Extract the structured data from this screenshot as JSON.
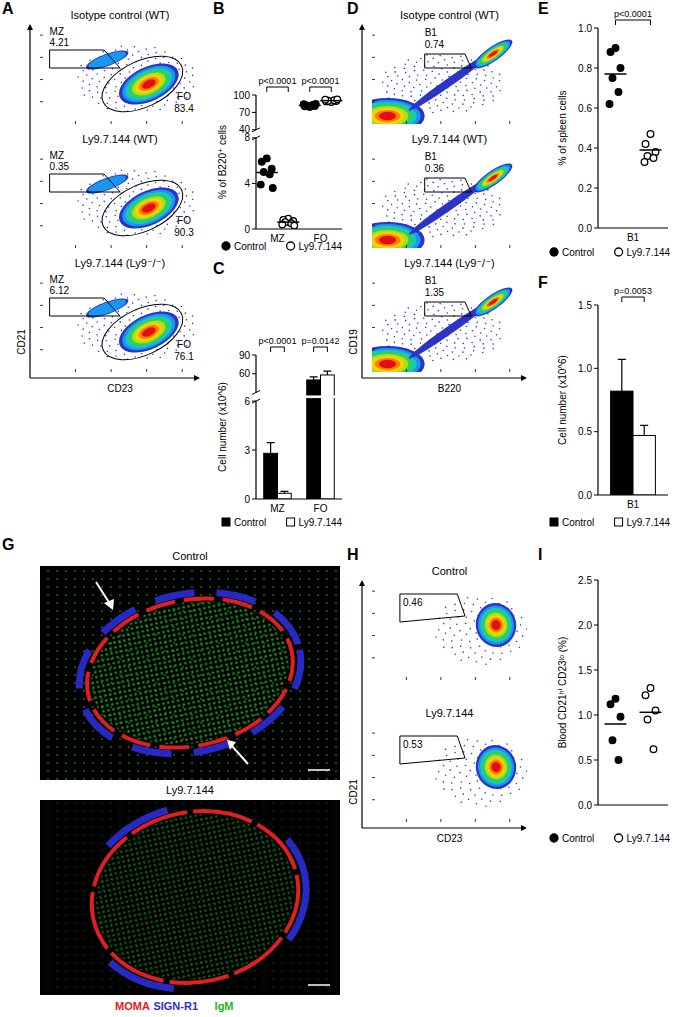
{
  "chart_data": [
    {
      "panel": "A",
      "type": "flow",
      "xlabel": "CD23",
      "ylabel": "CD21",
      "plots": [
        {
          "title": "Isotype control (WT)",
          "gates": [
            {
              "name": "MZ",
              "value": 4.21
            },
            {
              "name": "FO",
              "value": 83.4
            }
          ]
        },
        {
          "title": "Ly9.7.144 (WT)",
          "gates": [
            {
              "name": "MZ",
              "value": 0.35
            },
            {
              "name": "FO",
              "value": 90.3
            }
          ]
        },
        {
          "title": "Ly9.7.144 (Ly9⁻/⁻)",
          "gates": [
            {
              "name": "MZ",
              "value": 6.12
            },
            {
              "name": "FO",
              "value": 76.1
            }
          ]
        }
      ]
    },
    {
      "panel": "B",
      "type": "dot",
      "ylabel": "% of B220⁺ cells",
      "categories": [
        "MZ",
        "FO"
      ],
      "ylim": [
        0,
        100
      ],
      "ybreak": [
        8,
        40
      ],
      "yticks": [
        0,
        4,
        8,
        40,
        70,
        100
      ],
      "legend": "bottom",
      "series": [
        {
          "name": "Control",
          "marker": "filled",
          "color": "#000000",
          "values": [
            [
              6.2,
              5.9,
              5.3,
              5.0,
              4.8,
              3.9,
              3.6
            ],
            [
              79.5,
              80.5,
              81,
              82,
              83,
              84,
              84.5
            ]
          ],
          "means": [
            4.96,
            82.07
          ]
        },
        {
          "name": "Ly9.7.144",
          "marker": "open",
          "color": "#000000",
          "values": [
            [
              0.9,
              0.8,
              0.7,
              0.6,
              0.5,
              0.4,
              0.3
            ],
            [
              88,
              89,
              89.5,
              90,
              91,
              92,
              92.5
            ]
          ],
          "means": [
            0.6,
            90.29
          ]
        }
      ],
      "annotations": [
        {
          "text": "p<0.0001",
          "category": 0
        },
        {
          "text": "p<0.0001",
          "category": 1
        }
      ]
    },
    {
      "panel": "C",
      "type": "bar",
      "ylabel": "Cell number (x10^6)",
      "categories": [
        "MZ",
        "FO"
      ],
      "ylim": [
        0,
        90
      ],
      "ybreak": [
        6,
        30
      ],
      "yticks": [
        0,
        3,
        6,
        60,
        90
      ],
      "legend": "bottom",
      "series": [
        {
          "name": "Control",
          "color": "#000000",
          "values": [
            2.8,
            50
          ],
          "errors": [
            0.65,
            5
          ]
        },
        {
          "name": "Ly9.7.144",
          "color": "#ffffff",
          "values": [
            0.35,
            58
          ],
          "errors": [
            0.12,
            6
          ]
        }
      ],
      "annotations": [
        {
          "text": "p<0.0001",
          "category": 0
        },
        {
          "text": "p=0.0142",
          "category": 1
        }
      ]
    },
    {
      "panel": "D",
      "type": "flow",
      "xlabel": "B220",
      "ylabel": "CD19",
      "plots": [
        {
          "title": "Isotype control (WT)",
          "gates": [
            {
              "name": "B1",
              "value": 0.74
            }
          ]
        },
        {
          "title": "Ly9.7.144 (WT)",
          "gates": [
            {
              "name": "B1",
              "value": 0.36
            }
          ]
        },
        {
          "title": "Ly9.7.144 (Ly9⁻/⁻)",
          "gates": [
            {
              "name": "B1",
              "value": 1.35
            }
          ]
        }
      ]
    },
    {
      "panel": "E",
      "type": "dot",
      "ylabel": "% of spleen cells",
      "categories": [
        "B1"
      ],
      "ylim": [
        0,
        1
      ],
      "yticks": [
        {
          "value": 0,
          "label": "0.0"
        },
        0.2,
        0.4,
        0.6,
        0.8,
        {
          "value": 1,
          "label": "1.0"
        }
      ],
      "legend": "bottom",
      "series": [
        {
          "name": "Control",
          "marker": "filled",
          "color": "#000000",
          "values": [
            [
              0.9,
              0.88,
              0.8,
              0.75,
              0.68,
              0.62
            ]
          ],
          "means": [
            0.77
          ]
        },
        {
          "name": "Ly9.7.144",
          "marker": "open",
          "color": "#000000",
          "values": [
            [
              0.47,
              0.42,
              0.38,
              0.36,
              0.35,
              0.33
            ]
          ],
          "means": [
            0.39
          ]
        }
      ],
      "annotations": [
        {
          "text": "p<0.0001",
          "category": 0
        }
      ]
    },
    {
      "panel": "F",
      "type": "bar",
      "ylabel": "Cell number (x10^6)",
      "categories": [
        "B1"
      ],
      "ylim": [
        0,
        1.5
      ],
      "yticks": [
        {
          "value": 0,
          "label": "0.0"
        },
        0.5,
        {
          "value": 1,
          "label": "1.0"
        },
        1.5
      ],
      "legend": "bottom",
      "series": [
        {
          "name": "Control",
          "color": "#000000",
          "values": [
            0.82
          ],
          "errors": [
            0.25
          ]
        },
        {
          "name": "Ly9.7.144",
          "color": "#ffffff",
          "values": [
            0.47
          ],
          "errors": [
            0.08
          ]
        }
      ],
      "annotations": [
        {
          "text": "p=0.0053",
          "category": 0
        }
      ]
    },
    {
      "panel": "G",
      "type": "image",
      "images": [
        {
          "title": "Control"
        },
        {
          "title": "Ly9.7.144"
        }
      ],
      "stains": [
        {
          "name": "MOMA",
          "color": "#e02020"
        },
        {
          "name": "SIGN-R1",
          "color": "#2c2cd8"
        },
        {
          "name": "IgM",
          "color": "#22b422"
        }
      ]
    },
    {
      "panel": "H",
      "type": "flow",
      "xlabel": "CD23",
      "ylabel": "CD21",
      "plots": [
        {
          "title": "Control",
          "gates": [
            {
              "value": 0.46
            }
          ]
        },
        {
          "title": "Ly9.7.144",
          "gates": [
            {
              "value": 0.53
            }
          ]
        }
      ]
    },
    {
      "panel": "I",
      "type": "dot",
      "ylabel": "Blood CD21ʰⁱ CD23ˡᵒ (%)",
      "categories": [
        null
      ],
      "ylim": [
        0,
        2.5
      ],
      "yticks": [
        {
          "value": 0,
          "label": "0.0"
        },
        0.5,
        {
          "value": 1,
          "label": "1.0"
        },
        1.5,
        {
          "value": 2,
          "label": "2.0"
        },
        2.5
      ],
      "legend": "bottom",
      "series": [
        {
          "name": "Control",
          "marker": "filled",
          "color": "#000000",
          "values": [
            [
              1.18,
              1.12,
              0.98,
              0.72,
              0.5
            ]
          ],
          "means": [
            0.9
          ]
        },
        {
          "name": "Ly9.7.144",
          "marker": "open",
          "color": "#000000",
          "values": [
            [
              1.3,
              1.22,
              1.05,
              0.95,
              0.62
            ]
          ],
          "means": [
            1.03
          ]
        }
      ]
    }
  ]
}
